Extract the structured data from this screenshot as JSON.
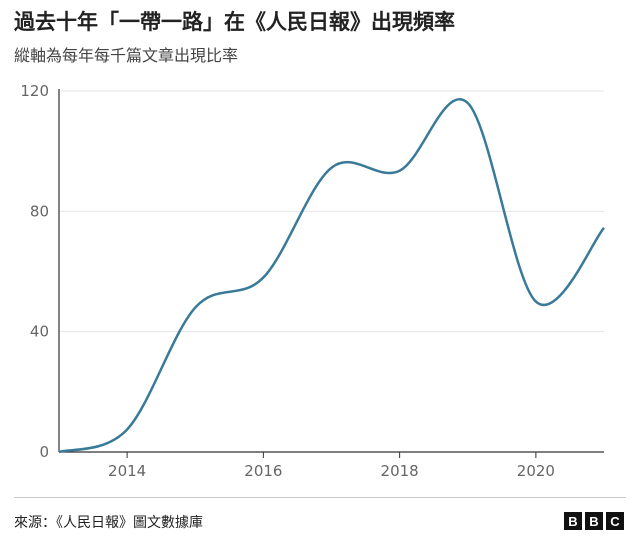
{
  "header": {
    "title": "過去十年「一帶一路」在《人民日報》出現頻率",
    "subtitle": "縱軸為每年每千篇文章出現比率"
  },
  "chart_data": {
    "type": "line",
    "title": "過去十年「一帶一路」在《人民日報》出現頻率",
    "subtitle": "縱軸為每年每千篇文章出現比率",
    "x": [
      2013,
      2014,
      2015,
      2016,
      2017,
      2018,
      2019,
      2020,
      2021
    ],
    "series": [
      {
        "values": [
          0,
          7.5,
          48,
          58,
          94.5,
          93.5,
          116,
          50,
          74.5
        ]
      }
    ],
    "xlim": [
      2013,
      2021
    ],
    "ylim": [
      0,
      120
    ],
    "xticks": [
      2014,
      2016,
      2018,
      2020
    ],
    "yticks": [
      0,
      40,
      80,
      120
    ],
    "grid": "horizontal",
    "line_color": "#3a7a99"
  },
  "footer": {
    "source": "來源：《人民日報》圖文數據庫",
    "logo": "BBC"
  }
}
